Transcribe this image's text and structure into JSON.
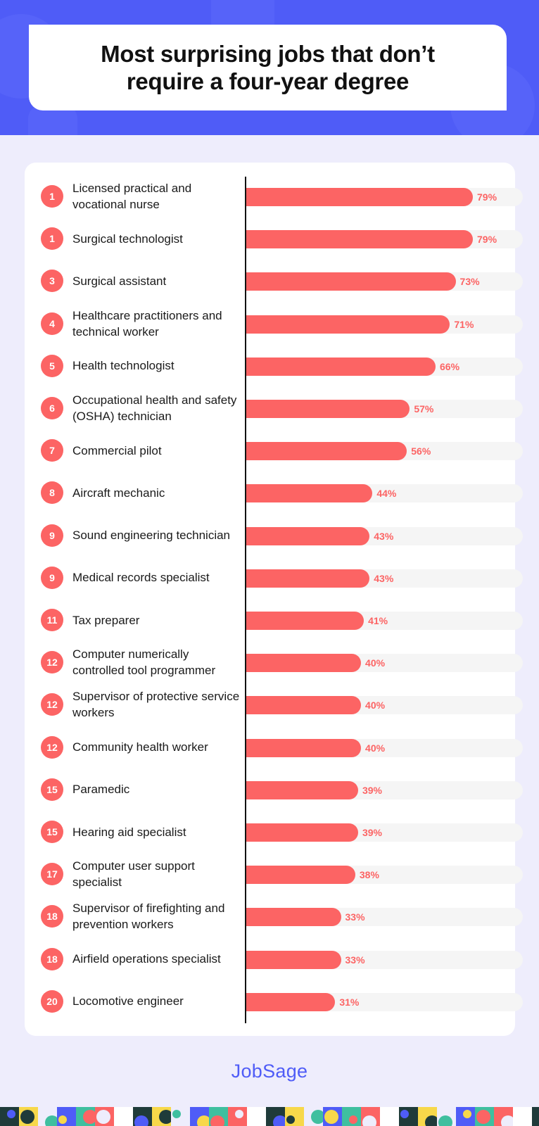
{
  "title": "Most surprising jobs that don’t require a four-year degree",
  "brand": "JobSage",
  "colors": {
    "header_bg": "#4f5cf7",
    "accent": "#fc6464",
    "track": "#f5f5f5",
    "page_bg": "#eeedfc"
  },
  "chart_data": {
    "type": "bar",
    "orientation": "horizontal",
    "title": "Most surprising jobs that don’t require a four-year degree",
    "value_suffix": "%",
    "xlim": [
      0,
      100
    ],
    "grid": false,
    "rows": [
      {
        "rank": "1",
        "label": "Licensed practical and vocational nurse",
        "value": 79,
        "value_label": "79%"
      },
      {
        "rank": "1",
        "label": "Surgical technologist",
        "value": 79,
        "value_label": "79%"
      },
      {
        "rank": "3",
        "label": "Surgical assistant",
        "value": 73,
        "value_label": "73%"
      },
      {
        "rank": "4",
        "label": "Healthcare practitioners and technical worker",
        "value": 71,
        "value_label": "71%"
      },
      {
        "rank": "5",
        "label": "Health technologist",
        "value": 66,
        "value_label": "66%"
      },
      {
        "rank": "6",
        "label": "Occupational health and safety (OSHA) technician",
        "value": 57,
        "value_label": "57%"
      },
      {
        "rank": "7",
        "label": "Commercial pilot",
        "value": 56,
        "value_label": "56%"
      },
      {
        "rank": "8",
        "label": "Aircraft mechanic",
        "value": 44,
        "value_label": "44%"
      },
      {
        "rank": "9",
        "label": "Sound engineering technician",
        "value": 43,
        "value_label": "43%"
      },
      {
        "rank": "9",
        "label": "Medical records specialist",
        "value": 43,
        "value_label": "43%"
      },
      {
        "rank": "11",
        "label": "Tax preparer",
        "value": 41,
        "value_label": "41%"
      },
      {
        "rank": "12",
        "label": "Computer numerically controlled tool programmer",
        "value": 40,
        "value_label": "40%"
      },
      {
        "rank": "12",
        "label": "Supervisor of protective service workers",
        "value": 40,
        "value_label": "40%"
      },
      {
        "rank": "12",
        "label": "Community health worker",
        "value": 40,
        "value_label": "40%"
      },
      {
        "rank": "15",
        "label": "Paramedic",
        "value": 39,
        "value_label": "39%"
      },
      {
        "rank": "15",
        "label": "Hearing aid specialist",
        "value": 39,
        "value_label": "39%"
      },
      {
        "rank": "17",
        "label": "Computer user support specialist",
        "value": 38,
        "value_label": "38%"
      },
      {
        "rank": "18",
        "label": "Supervisor of firefighting and prevention workers",
        "value": 33,
        "value_label": "33%"
      },
      {
        "rank": "18",
        "label": "Airfield operations specialist",
        "value": 33,
        "value_label": "33%"
      },
      {
        "rank": "20",
        "label": "Locomotive engineer",
        "value": 31,
        "value_label": "31%"
      }
    ]
  }
}
